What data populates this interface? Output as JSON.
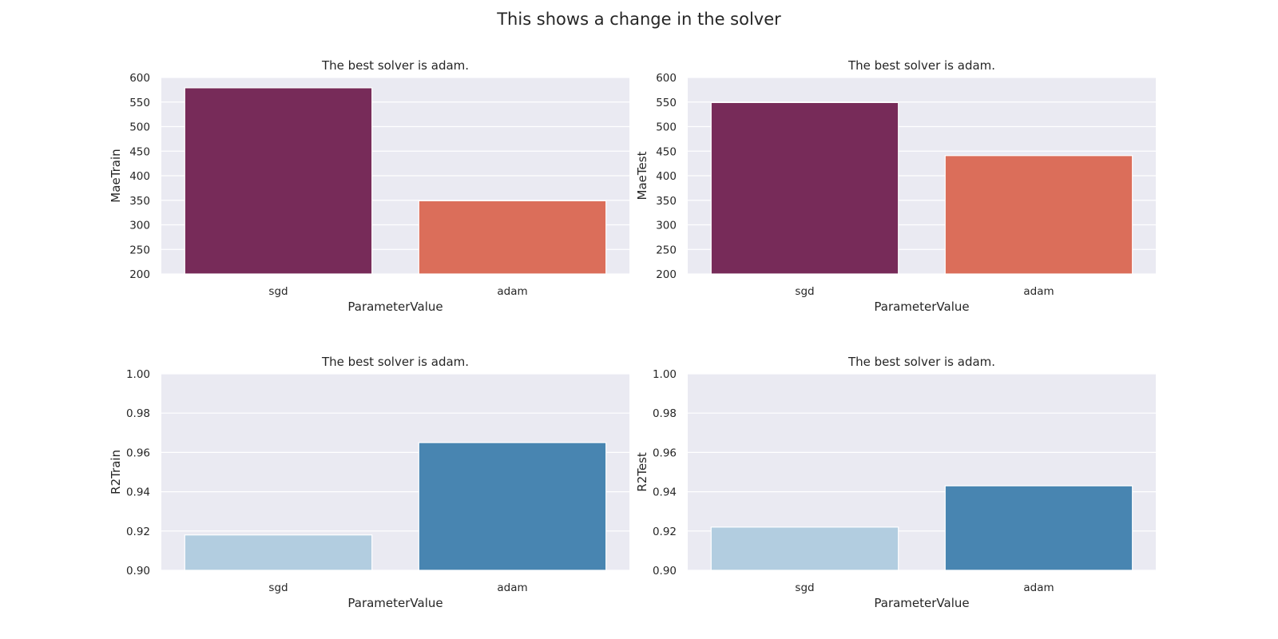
{
  "suptitle": "This shows a change in the solver",
  "chart_data": [
    {
      "type": "bar",
      "title": "The best solver is adam.",
      "xlabel": "ParameterValue",
      "ylabel": "MaeTrain",
      "categories": [
        "sgd",
        "adam"
      ],
      "values": [
        579,
        349
      ],
      "ylim": [
        200,
        600
      ],
      "yticks": [
        200,
        250,
        300,
        350,
        400,
        450,
        500,
        550,
        600
      ],
      "colors": [
        "#772b59",
        "#db6e5a"
      ],
      "grid": true,
      "legend": "none"
    },
    {
      "type": "bar",
      "title": "The best solver is adam.",
      "xlabel": "ParameterValue",
      "ylabel": "MaeTest",
      "categories": [
        "sgd",
        "adam"
      ],
      "values": [
        549,
        441
      ],
      "ylim": [
        200,
        600
      ],
      "yticks": [
        200,
        250,
        300,
        350,
        400,
        450,
        500,
        550,
        600
      ],
      "colors": [
        "#772b59",
        "#db6e5a"
      ],
      "grid": true,
      "legend": "none"
    },
    {
      "type": "bar",
      "title": "The best solver is adam.",
      "xlabel": "ParameterValue",
      "ylabel": "R2Train",
      "categories": [
        "sgd",
        "adam"
      ],
      "values": [
        0.918,
        0.965
      ],
      "ylim": [
        0.9,
        1.0
      ],
      "yticks": [
        0.9,
        0.92,
        0.94,
        0.96,
        0.98,
        1.0
      ],
      "yticklabels": [
        "0.90",
        "0.92",
        "0.94",
        "0.96",
        "0.98",
        "1.00"
      ],
      "colors": [
        "#b2cde0",
        "#4885b1"
      ],
      "grid": true,
      "legend": "none"
    },
    {
      "type": "bar",
      "title": "The best solver is adam.",
      "xlabel": "ParameterValue",
      "ylabel": "R2Test",
      "categories": [
        "sgd",
        "adam"
      ],
      "values": [
        0.922,
        0.943
      ],
      "ylim": [
        0.9,
        1.0
      ],
      "yticks": [
        0.9,
        0.92,
        0.94,
        0.96,
        0.98,
        1.0
      ],
      "yticklabels": [
        "0.90",
        "0.92",
        "0.94",
        "0.96",
        "0.98",
        "1.00"
      ],
      "colors": [
        "#b2cde0",
        "#4885b1"
      ],
      "grid": true,
      "legend": "none"
    }
  ]
}
